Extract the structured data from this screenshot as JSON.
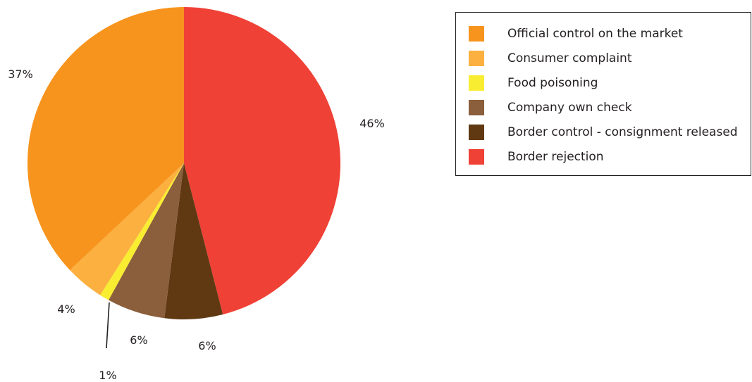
{
  "chart_data": {
    "type": "pie",
    "title": "",
    "slices": [
      {
        "label": "Border rejection",
        "value": 46,
        "display": "46%",
        "color": "#ef4136"
      },
      {
        "label": "Border control - consignment released",
        "value": 6,
        "display": "6%",
        "color": "#603913"
      },
      {
        "label": "Company own check",
        "value": 6,
        "display": "6%",
        "color": "#8b5e3c"
      },
      {
        "label": "Food poisoning",
        "value": 1,
        "display": "1%",
        "color": "#f9ed32"
      },
      {
        "label": "Consumer complaint",
        "value": 4,
        "display": "4%",
        "color": "#fbb040"
      },
      {
        "label": "Official control on the market",
        "value": 37,
        "display": "37%",
        "color": "#f7941d"
      }
    ],
    "start_angle_deg": 0,
    "direction": "clockwise",
    "legend_position": "top-right"
  },
  "legend": {
    "items": [
      {
        "label": "Official control on the market",
        "color": "#f7941d"
      },
      {
        "label": "Consumer complaint",
        "color": "#fbb040"
      },
      {
        "label": "Food poisoning",
        "color": "#f9ed32"
      },
      {
        "label": "Company own check",
        "color": "#8b5e3c"
      },
      {
        "label": "Border control - consignment released",
        "color": "#603913"
      },
      {
        "label": "Border rejection",
        "color": "#ef4136"
      }
    ]
  }
}
